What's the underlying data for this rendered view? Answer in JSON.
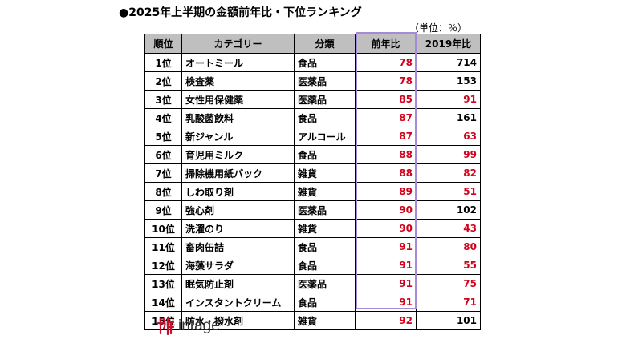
{
  "title": "●2025年上半期の金額前年比・下位ランキング",
  "unit": "（単位：％）",
  "table": {
    "headers": [
      "順位",
      "カテゴリー",
      "分類",
      "前年比",
      "2019年比"
    ],
    "rows": [
      {
        "rank": "1位",
        "category": "オートミール",
        "genre": "食品",
        "yoy": "78",
        "vs2019": "714",
        "vs2019_red": false
      },
      {
        "rank": "2位",
        "category": "検査薬",
        "genre": "医薬品",
        "yoy": "78",
        "vs2019": "153",
        "vs2019_red": false
      },
      {
        "rank": "3位",
        "category": "女性用保健薬",
        "genre": "医薬品",
        "yoy": "85",
        "vs2019": "91",
        "vs2019_red": true
      },
      {
        "rank": "4位",
        "category": "乳酸菌飲料",
        "genre": "食品",
        "yoy": "87",
        "vs2019": "161",
        "vs2019_red": false
      },
      {
        "rank": "5位",
        "category": "新ジャンル",
        "genre": "アルコール",
        "yoy": "87",
        "vs2019": "63",
        "vs2019_red": true
      },
      {
        "rank": "6位",
        "category": "育児用ミルク",
        "genre": "食品",
        "yoy": "88",
        "vs2019": "99",
        "vs2019_red": true
      },
      {
        "rank": "7位",
        "category": "掃除機用紙パック",
        "genre": "雑貨",
        "yoy": "88",
        "vs2019": "82",
        "vs2019_red": true
      },
      {
        "rank": "8位",
        "category": "しわ取り剤",
        "genre": "雑貨",
        "yoy": "89",
        "vs2019": "51",
        "vs2019_red": true
      },
      {
        "rank": "9位",
        "category": "強心剤",
        "genre": "医薬品",
        "yoy": "90",
        "vs2019": "102",
        "vs2019_red": false
      },
      {
        "rank": "10位",
        "category": "洗濯のり",
        "genre": "雑貨",
        "yoy": "90",
        "vs2019": "43",
        "vs2019_red": true
      },
      {
        "rank": "11位",
        "category": "畜肉缶詰",
        "genre": "食品",
        "yoy": "91",
        "vs2019": "80",
        "vs2019_red": true
      },
      {
        "rank": "12位",
        "category": "海藻サラダ",
        "genre": "食品",
        "yoy": "91",
        "vs2019": "55",
        "vs2019_red": true
      },
      {
        "rank": "13位",
        "category": "眠気防止剤",
        "genre": "医薬品",
        "yoy": "91",
        "vs2019": "75",
        "vs2019_red": true
      },
      {
        "rank": "14位",
        "category": "インスタントクリーム",
        "genre": "食品",
        "yoy": "91",
        "vs2019": "71",
        "vs2019_red": true
      },
      {
        "rank": "15位",
        "category": "防水・撥水剤",
        "genre": "雑貨",
        "yoy": "92",
        "vs2019": "101",
        "vs2019_red": false
      }
    ]
  },
  "logo": {
    "text": "intage"
  },
  "colors": {
    "header_bg": "#bfbfbf",
    "value_red": "#d0021b",
    "highlight_frame": "#a58bd6",
    "logo_red": "#c8102e"
  }
}
